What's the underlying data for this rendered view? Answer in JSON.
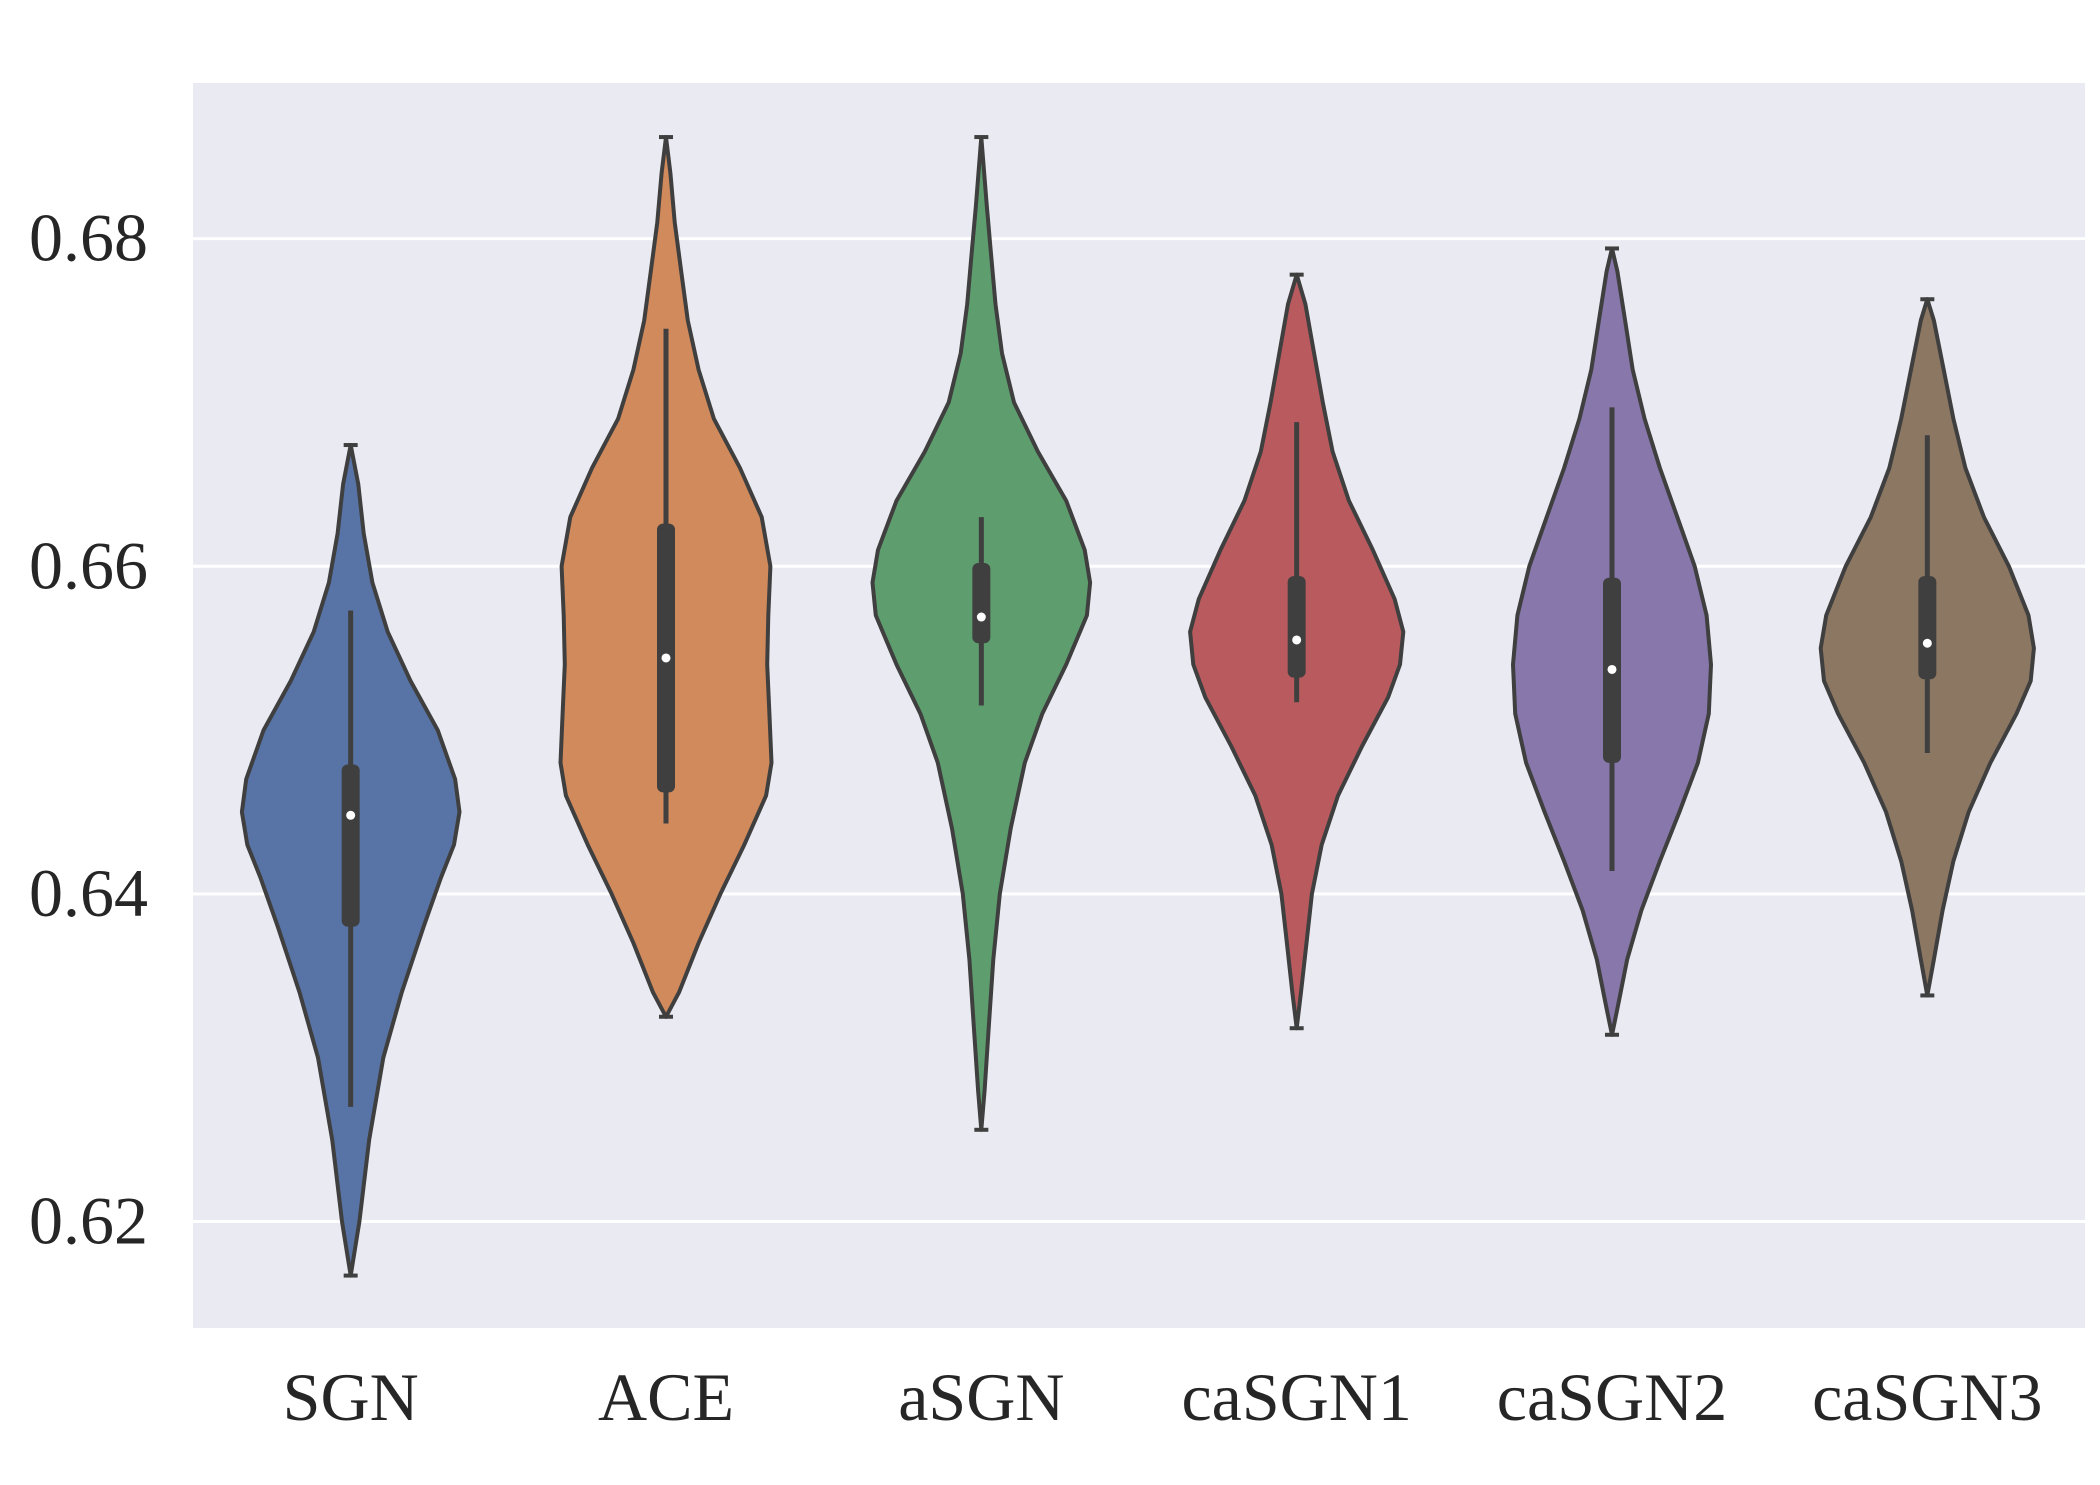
{
  "chart_data": {
    "type": "violin",
    "title": "",
    "xlabel": "",
    "ylabel": "",
    "ylim": [
      0.6135,
      0.6895
    ],
    "yticks": [
      0.62,
      0.64,
      0.66,
      0.68
    ],
    "ytick_labels": [
      "0.62",
      "0.64",
      "0.66",
      "0.68"
    ],
    "grid": true,
    "categories": [
      "SGN",
      "ACE",
      "aSGN",
      "caSGN1",
      "caSGN2",
      "caSGN3"
    ],
    "colors": [
      "#5874a6",
      "#d18a5c",
      "#5e9e6e",
      "#b95b5e",
      "#8777ab",
      "#8c7762"
    ],
    "series": [
      {
        "name": "SGN",
        "min": 0.627,
        "q1": 0.638,
        "median": 0.6448,
        "q3": 0.6479,
        "max": 0.6573,
        "cut_low": 0.6167,
        "cut_high": 0.6674,
        "profile": [
          [
            0.6167,
            0.0
          ],
          [
            0.62,
            0.08
          ],
          [
            0.625,
            0.17
          ],
          [
            0.63,
            0.3
          ],
          [
            0.634,
            0.47
          ],
          [
            0.638,
            0.67
          ],
          [
            0.641,
            0.83
          ],
          [
            0.643,
            0.95
          ],
          [
            0.645,
            1.0
          ],
          [
            0.647,
            0.96
          ],
          [
            0.65,
            0.8
          ],
          [
            0.653,
            0.55
          ],
          [
            0.656,
            0.34
          ],
          [
            0.659,
            0.2
          ],
          [
            0.662,
            0.12
          ],
          [
            0.665,
            0.07
          ],
          [
            0.6674,
            0.0
          ]
        ]
      },
      {
        "name": "ACE",
        "min": 0.6443,
        "q1": 0.6462,
        "median": 0.6544,
        "q3": 0.6626,
        "max": 0.6745,
        "cut_low": 0.6325,
        "cut_high": 0.6862,
        "profile": [
          [
            0.6325,
            0.0
          ],
          [
            0.634,
            0.12
          ],
          [
            0.637,
            0.3
          ],
          [
            0.64,
            0.5
          ],
          [
            0.643,
            0.72
          ],
          [
            0.646,
            0.92
          ],
          [
            0.648,
            0.97
          ],
          [
            0.651,
            0.95
          ],
          [
            0.654,
            0.93
          ],
          [
            0.657,
            0.94
          ],
          [
            0.66,
            0.96
          ],
          [
            0.663,
            0.88
          ],
          [
            0.666,
            0.68
          ],
          [
            0.669,
            0.44
          ],
          [
            0.672,
            0.3
          ],
          [
            0.675,
            0.2
          ],
          [
            0.678,
            0.14
          ],
          [
            0.681,
            0.08
          ],
          [
            0.684,
            0.04
          ],
          [
            0.6862,
            0.0
          ]
        ]
      },
      {
        "name": "aSGN",
        "min": 0.6515,
        "q1": 0.6553,
        "median": 0.6569,
        "q3": 0.6602,
        "max": 0.663,
        "cut_low": 0.6256,
        "cut_high": 0.6862,
        "profile": [
          [
            0.6256,
            0.0
          ],
          [
            0.628,
            0.03
          ],
          [
            0.632,
            0.07
          ],
          [
            0.636,
            0.11
          ],
          [
            0.64,
            0.17
          ],
          [
            0.644,
            0.27
          ],
          [
            0.648,
            0.4
          ],
          [
            0.651,
            0.56
          ],
          [
            0.654,
            0.78
          ],
          [
            0.657,
            0.97
          ],
          [
            0.659,
            1.0
          ],
          [
            0.661,
            0.95
          ],
          [
            0.664,
            0.78
          ],
          [
            0.667,
            0.52
          ],
          [
            0.67,
            0.3
          ],
          [
            0.673,
            0.19
          ],
          [
            0.676,
            0.13
          ],
          [
            0.679,
            0.09
          ],
          [
            0.682,
            0.05
          ],
          [
            0.6862,
            0.0
          ]
        ]
      },
      {
        "name": "caSGN1",
        "min": 0.6517,
        "q1": 0.6532,
        "median": 0.6555,
        "q3": 0.6594,
        "max": 0.6688,
        "cut_low": 0.6318,
        "cut_high": 0.6778,
        "profile": [
          [
            0.6318,
            0.0
          ],
          [
            0.634,
            0.04
          ],
          [
            0.637,
            0.09
          ],
          [
            0.64,
            0.14
          ],
          [
            0.643,
            0.23
          ],
          [
            0.646,
            0.38
          ],
          [
            0.649,
            0.6
          ],
          [
            0.652,
            0.84
          ],
          [
            0.654,
            0.95
          ],
          [
            0.656,
            0.98
          ],
          [
            0.658,
            0.9
          ],
          [
            0.661,
            0.7
          ],
          [
            0.664,
            0.48
          ],
          [
            0.667,
            0.33
          ],
          [
            0.67,
            0.24
          ],
          [
            0.673,
            0.16
          ],
          [
            0.676,
            0.08
          ],
          [
            0.6778,
            0.0
          ]
        ]
      },
      {
        "name": "caSGN2",
        "min": 0.6414,
        "q1": 0.648,
        "median": 0.6537,
        "q3": 0.6593,
        "max": 0.6697,
        "cut_low": 0.6314,
        "cut_high": 0.6794,
        "profile": [
          [
            0.6314,
            0.0
          ],
          [
            0.633,
            0.05
          ],
          [
            0.636,
            0.14
          ],
          [
            0.639,
            0.27
          ],
          [
            0.642,
            0.44
          ],
          [
            0.645,
            0.62
          ],
          [
            0.648,
            0.79
          ],
          [
            0.651,
            0.89
          ],
          [
            0.654,
            0.91
          ],
          [
            0.657,
            0.87
          ],
          [
            0.66,
            0.76
          ],
          [
            0.663,
            0.6
          ],
          [
            0.666,
            0.44
          ],
          [
            0.669,
            0.3
          ],
          [
            0.672,
            0.19
          ],
          [
            0.675,
            0.12
          ],
          [
            0.678,
            0.05
          ],
          [
            0.6794,
            0.0
          ]
        ]
      },
      {
        "name": "caSGN3",
        "min": 0.6486,
        "q1": 0.6531,
        "median": 0.6553,
        "q3": 0.6594,
        "max": 0.668,
        "cut_low": 0.6338,
        "cut_high": 0.6763,
        "profile": [
          [
            0.6338,
            0.0
          ],
          [
            0.636,
            0.06
          ],
          [
            0.639,
            0.14
          ],
          [
            0.642,
            0.24
          ],
          [
            0.645,
            0.38
          ],
          [
            0.648,
            0.58
          ],
          [
            0.651,
            0.82
          ],
          [
            0.653,
            0.95
          ],
          [
            0.655,
            0.98
          ],
          [
            0.657,
            0.93
          ],
          [
            0.66,
            0.75
          ],
          [
            0.663,
            0.52
          ],
          [
            0.666,
            0.35
          ],
          [
            0.669,
            0.24
          ],
          [
            0.672,
            0.15
          ],
          [
            0.675,
            0.06
          ],
          [
            0.6763,
            0.0
          ]
        ]
      }
    ]
  }
}
